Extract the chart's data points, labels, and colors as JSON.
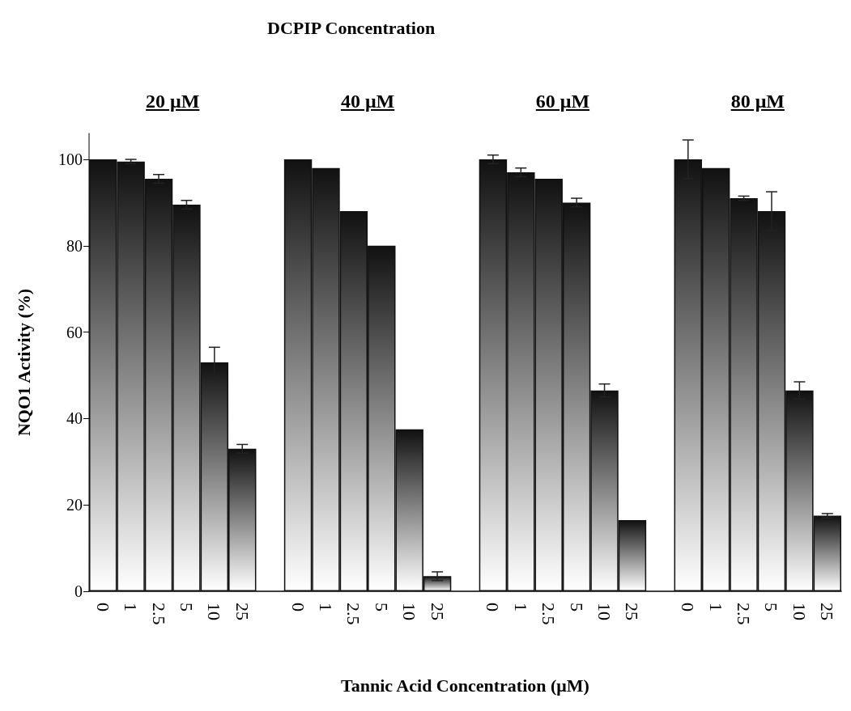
{
  "chart_data": {
    "type": "bar",
    "title": "DCPIP Concentration",
    "xlabel": "Tannic Acid Concentration (μM)",
    "ylabel": "NQO1 Activity (%)",
    "annotations": [
      "20 μM",
      "40 μM",
      "60 μM",
      "80 μM"
    ],
    "categories": [
      "0",
      "1",
      "2.5",
      "5",
      "10",
      "25",
      null,
      "0",
      "1",
      "2.5",
      "5",
      "10",
      "25",
      null,
      "0",
      "1",
      "2.5",
      "5",
      "10",
      "25",
      null,
      "0",
      "1",
      "2.5",
      "5",
      "10",
      "25"
    ],
    "values": [
      100,
      99.5,
      95.5,
      89.5,
      53,
      33,
      null,
      100,
      98,
      88,
      80,
      37.5,
      3.5,
      null,
      100,
      97,
      95.5,
      90,
      46.5,
      16.5,
      null,
      100,
      98,
      91,
      88,
      46.5,
      17.5
    ],
    "errors": [
      null,
      0.5,
      1,
      1,
      3.5,
      1,
      null,
      null,
      null,
      null,
      null,
      null,
      1,
      null,
      1,
      1,
      null,
      1,
      1.5,
      null,
      null,
      4.5,
      null,
      0.5,
      4.5,
      2,
      0.5
    ],
    "color": "#111111",
    "ylim": [
      0,
      106
    ],
    "yticks": [
      0,
      20,
      40,
      60,
      80,
      100
    ],
    "grid": false
  }
}
